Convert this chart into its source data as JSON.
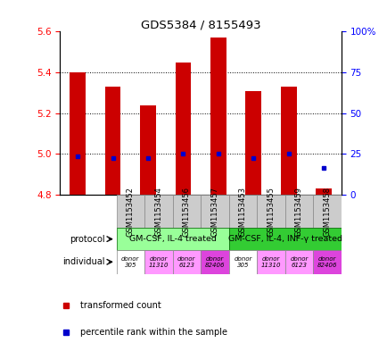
{
  "title": "GDS5384 / 8155493",
  "samples": [
    "GSM1153452",
    "GSM1153454",
    "GSM1153456",
    "GSM1153457",
    "GSM1153453",
    "GSM1153455",
    "GSM1153459",
    "GSM1153458"
  ],
  "bar_values": [
    5.4,
    5.33,
    5.24,
    5.45,
    5.57,
    5.31,
    5.33,
    4.83
  ],
  "bar_base": 4.8,
  "dot_values": [
    4.99,
    4.98,
    4.98,
    5.0,
    5.0,
    4.98,
    5.0,
    4.93
  ],
  "ylim_left": [
    4.8,
    5.6
  ],
  "ylim_right": [
    0,
    100
  ],
  "yticks_left": [
    4.8,
    5.0,
    5.2,
    5.4,
    5.6
  ],
  "yticks_right": [
    0,
    25,
    50,
    75,
    100
  ],
  "ytick_right_labels": [
    "0",
    "25",
    "50",
    "75",
    "100%"
  ],
  "bar_color": "#cc0000",
  "dot_color": "#0000cc",
  "protocol_groups": [
    {
      "label": "GM-CSF, IL-4 treated",
      "color": "#99ff99",
      "start": 0,
      "end": 3
    },
    {
      "label": "GM-CSF, IL-4, INF-γ treated",
      "color": "#33cc33",
      "start": 4,
      "end": 7
    }
  ],
  "individual_colors": [
    "#ffffff",
    "#ff99ff",
    "#ff99ff",
    "#dd44dd",
    "#ffffff",
    "#ff99ff",
    "#ff99ff",
    "#dd44dd"
  ],
  "individual_labels": [
    "donor\n305",
    "donor\n11310",
    "donor\n6123",
    "donor\n82406",
    "donor\n305",
    "donor\n11310",
    "donor\n6123",
    "donor\n82406"
  ],
  "sample_bg_color": "#cccccc",
  "legend_red_label": "transformed count",
  "legend_blue_label": "percentile rank within the sample",
  "protocol_label": "protocol",
  "individual_label": "individual"
}
